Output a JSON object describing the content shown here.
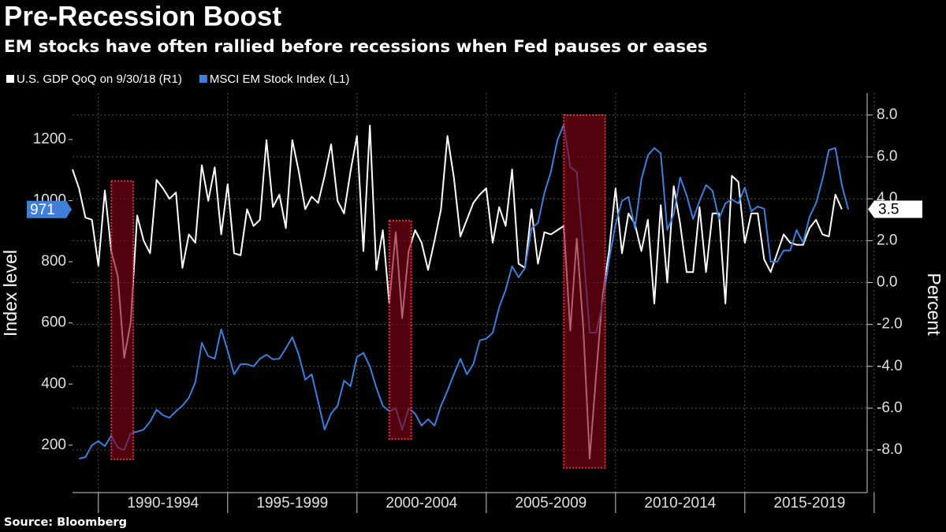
{
  "chart_data": {
    "type": "line",
    "title": "Pre-Recession Boost",
    "subtitle": "EM stocks have often rallied before recessions when Fed pauses or eases",
    "source": "Source: Bloomberg",
    "y_label": "Index level",
    "y2_label": "Percent",
    "x": [
      1989,
      1989.25,
      1989.5,
      1989.75,
      1990,
      1990.25,
      1990.5,
      1990.75,
      1991,
      1991.25,
      1991.5,
      1991.75,
      1992,
      1992.25,
      1992.5,
      1992.75,
      1993,
      1993.25,
      1993.5,
      1993.75,
      1994,
      1994.25,
      1994.5,
      1994.75,
      1995,
      1995.25,
      1995.5,
      1995.75,
      1996,
      1996.25,
      1996.5,
      1996.75,
      1997,
      1997.25,
      1997.5,
      1997.75,
      1998,
      1998.25,
      1998.5,
      1998.75,
      1999,
      1999.25,
      1999.5,
      1999.75,
      2000,
      2000.25,
      2000.5,
      2000.75,
      2001,
      2001.25,
      2001.5,
      2001.75,
      2002,
      2002.25,
      2002.5,
      2002.75,
      2003,
      2003.25,
      2003.5,
      2003.75,
      2004,
      2004.25,
      2004.5,
      2004.75,
      2005,
      2005.25,
      2005.5,
      2005.75,
      2006,
      2006.25,
      2006.5,
      2006.75,
      2007,
      2007.25,
      2007.5,
      2007.75,
      2008,
      2008.25,
      2008.5,
      2008.75,
      2009,
      2009.25,
      2009.5,
      2009.75,
      2010,
      2010.25,
      2010.5,
      2010.75,
      2011,
      2011.25,
      2011.5,
      2011.75,
      2012,
      2012.25,
      2012.5,
      2012.75,
      2013,
      2013.25,
      2013.5,
      2013.75,
      2014,
      2014.25,
      2014.5,
      2014.75,
      2015,
      2015.25,
      2015.5,
      2015.75,
      2016,
      2016.25,
      2016.5,
      2016.75,
      2017,
      2017.25,
      2017.5,
      2017.75,
      2018,
      2018.25,
      2018.5,
      2018.75,
      2019
    ],
    "xlim": [
      1989,
      2019.73
    ],
    "xticks": [
      {
        "value": 1992.5,
        "label": "1990-1994"
      },
      {
        "value": 1997.5,
        "label": "1995-1999"
      },
      {
        "value": 2002.5,
        "label": "2000-2004"
      },
      {
        "value": 2007.5,
        "label": "2005-2009"
      },
      {
        "value": 2012.5,
        "label": "2010-2014"
      },
      {
        "value": 2017.5,
        "label": "2015-2019"
      }
    ],
    "x_separators": [
      1990,
      1995,
      2000,
      2005,
      2010,
      2015,
      2020
    ],
    "ylim": [
      45,
      1352
    ],
    "yticks": [
      200,
      400,
      600,
      800,
      1000,
      1200
    ],
    "y2lim": [
      -10.03,
      9.05
    ],
    "y2ticks": [
      {
        "value": -8,
        "label": "-8.0"
      },
      {
        "value": -6,
        "label": "-6.0"
      },
      {
        "value": -4,
        "label": "-4.0"
      },
      {
        "value": -2,
        "label": "-2.0"
      },
      {
        "value": 0,
        "label": "0.0"
      },
      {
        "value": 2,
        "label": "2.0"
      },
      {
        "value": 4,
        "label": "4.0"
      },
      {
        "value": 6,
        "label": "6.0"
      },
      {
        "value": 8,
        "label": "8.0"
      }
    ],
    "grid": true,
    "recessions": [
      [
        1990.5,
        1991.35
      ],
      [
        2001.25,
        2002.1
      ],
      [
        2008.0,
        2009.6
      ]
    ],
    "series": [
      {
        "name": "U.S. GDP QoQ on 9/30/18 (R1)",
        "color": "#ffffff",
        "axis": "y2",
        "values": [
          5.4,
          4.5,
          3.1,
          3.0,
          0.8,
          4.4,
          1.5,
          0.3,
          -3.6,
          -1.9,
          3.2,
          2.0,
          1.4,
          4.9,
          4.5,
          4.0,
          4.3,
          0.7,
          2.3,
          1.9,
          5.6,
          3.9,
          5.5,
          2.3,
          4.7,
          1.4,
          1.3,
          3.5,
          2.7,
          3.0,
          6.8,
          3.6,
          4.2,
          2.6,
          6.8,
          5.3,
          3.5,
          4.1,
          3.8,
          5.1,
          6.6,
          3.9,
          3.3,
          5.3,
          7.0,
          1.5,
          7.5,
          0.6,
          2.5,
          -1.0,
          2.4,
          -1.7,
          1.5,
          2.5,
          1.9,
          0.6,
          2.0,
          3.5,
          7.0,
          5.0,
          2.2,
          3.0,
          3.8,
          4.2,
          4.5,
          1.9,
          3.6,
          2.7,
          5.4,
          0.9,
          0.7,
          3.5,
          0.9,
          2.4,
          2.3,
          2.5,
          2.7,
          -2.3,
          2.1,
          -2.1,
          -8.4,
          -4.4,
          -0.6,
          1.5,
          4.5,
          1.4,
          3.3,
          2.8,
          1.5,
          3.0,
          -1.0,
          3.7,
          0.0,
          4.6,
          2.8,
          0.5,
          0.5,
          3.6,
          0.5,
          3.3,
          3.3,
          -1.0,
          5.1,
          4.8,
          1.9,
          3.3,
          3.3,
          1.1,
          0.5,
          1.4,
          2.3,
          1.9,
          1.8,
          1.8,
          2.6,
          3.0,
          2.3,
          2.2,
          4.2,
          3.5,
          null
        ]
      },
      {
        "name": "MSCI EM Stock Index (L1)",
        "color": "#3d7fd9",
        "axis": "y",
        "values": [
          null,
          156,
          161,
          200,
          213,
          197,
          231,
          192,
          185,
          239,
          244,
          251,
          277,
          316,
          298,
          290,
          311,
          329,
          355,
          406,
          535,
          491,
          483,
          579,
          509,
          432,
          465,
          465,
          458,
          483,
          496,
          481,
          483,
          517,
          553,
          496,
          414,
          432,
          342,
          251,
          303,
          329,
          411,
          393,
          489,
          502,
          458,
          388,
          329,
          311,
          321,
          251,
          321,
          303,
          264,
          285,
          264,
          329,
          378,
          432,
          483,
          432,
          465,
          543,
          548,
          568,
          651,
          708,
          785,
          749,
          780,
          909,
          927,
          1025,
          1094,
          1197,
          1249,
          1110,
          1094,
          844,
          568,
          568,
          664,
          806,
          922,
          999,
          1012,
          909,
          1069,
          1148,
          1172,
          1154,
          904,
          955,
          1076,
          1017,
          940,
          999,
          1051,
          1032,
          940,
          991,
          1004,
          991,
          1043,
          965,
          981,
          973,
          800,
          800,
          837,
          837,
          904,
          862,
          947,
          991,
          1069,
          1166,
          1172,
          1050,
          971
        ]
      }
    ]
  }
}
